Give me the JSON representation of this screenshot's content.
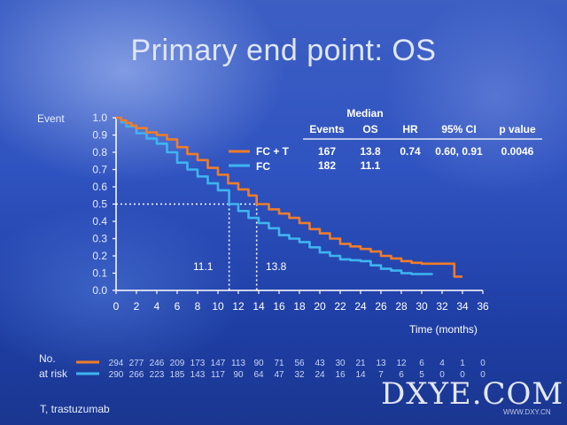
{
  "slide": {
    "title": "Primary end point: OS",
    "footnote": "T, trastuzumab",
    "watermark": "DXYE.COM",
    "watermark_sub": "WWW.DXY.CN"
  },
  "chart_data": {
    "type": "line",
    "ylabel": "Event",
    "xlabel": "Time (months)",
    "xlim": [
      0,
      36
    ],
    "ylim": [
      0,
      1.0
    ],
    "xticks": [
      "0",
      "2",
      "4",
      "6",
      "8",
      "10",
      "12",
      "14",
      "16",
      "18",
      "20",
      "22",
      "24",
      "26",
      "28",
      "30",
      "32",
      "34",
      "36"
    ],
    "yticks": [
      "0.0",
      "0.1",
      "0.2",
      "0.3",
      "0.4",
      "0.5",
      "0.6",
      "0.7",
      "0.8",
      "0.9",
      "1.0"
    ],
    "legend_position": "right",
    "series": [
      {
        "name": "FC + T",
        "color": "#f07c2a",
        "points": [
          [
            0,
            1.0
          ],
          [
            0.5,
            0.985
          ],
          [
            1,
            0.97
          ],
          [
            1.5,
            0.955
          ],
          [
            2,
            0.94
          ],
          [
            3,
            0.915
          ],
          [
            4,
            0.9
          ],
          [
            5,
            0.875
          ],
          [
            6,
            0.83
          ],
          [
            7,
            0.79
          ],
          [
            8,
            0.755
          ],
          [
            9,
            0.71
          ],
          [
            10,
            0.67
          ],
          [
            11,
            0.62
          ],
          [
            12,
            0.585
          ],
          [
            13,
            0.55
          ],
          [
            13.8,
            0.5
          ],
          [
            15,
            0.47
          ],
          [
            16,
            0.445
          ],
          [
            17,
            0.42
          ],
          [
            18,
            0.39
          ],
          [
            19,
            0.355
          ],
          [
            20,
            0.33
          ],
          [
            21,
            0.3
          ],
          [
            22,
            0.27
          ],
          [
            23,
            0.255
          ],
          [
            24,
            0.24
          ],
          [
            25,
            0.225
          ],
          [
            26,
            0.2
          ],
          [
            27,
            0.185
          ],
          [
            28,
            0.17
          ],
          [
            29,
            0.16
          ],
          [
            30,
            0.155
          ],
          [
            31,
            0.155
          ],
          [
            33,
            0.155
          ],
          [
            33.2,
            0.08
          ],
          [
            34,
            0.08
          ]
        ]
      },
      {
        "name": "FC",
        "color": "#3fb4f0",
        "points": [
          [
            0,
            1.0
          ],
          [
            0.5,
            0.975
          ],
          [
            1,
            0.95
          ],
          [
            2,
            0.91
          ],
          [
            3,
            0.88
          ],
          [
            4,
            0.85
          ],
          [
            5,
            0.8
          ],
          [
            6,
            0.74
          ],
          [
            7,
            0.7
          ],
          [
            8,
            0.66
          ],
          [
            9,
            0.62
          ],
          [
            10,
            0.58
          ],
          [
            11.1,
            0.5
          ],
          [
            12,
            0.46
          ],
          [
            13,
            0.42
          ],
          [
            14,
            0.39
          ],
          [
            15,
            0.36
          ],
          [
            16,
            0.32
          ],
          [
            17,
            0.3
          ],
          [
            18,
            0.28
          ],
          [
            19,
            0.25
          ],
          [
            20,
            0.22
          ],
          [
            21,
            0.2
          ],
          [
            22,
            0.18
          ],
          [
            23,
            0.175
          ],
          [
            24,
            0.17
          ],
          [
            25,
            0.145
          ],
          [
            26,
            0.125
          ],
          [
            27,
            0.115
          ],
          [
            28,
            0.1
          ],
          [
            29,
            0.095
          ],
          [
            31,
            0.09
          ]
        ]
      }
    ],
    "reference": {
      "y": 0.5,
      "median_fc": 11.1,
      "median_fct": 13.8,
      "label_fc": "11.1",
      "label_fct": "13.8"
    },
    "stats_table": {
      "header_top": "Median",
      "headers": [
        "Events",
        "OS",
        "HR",
        "95% CI",
        "p value"
      ],
      "rows": [
        {
          "label": "FC + T",
          "events": "167",
          "os": "13.8",
          "hr": "0.74",
          "ci": "0.60, 0.91",
          "p": "0.0046"
        },
        {
          "label": "FC",
          "events": "182",
          "os": "11.1",
          "hr": "",
          "ci": "",
          "p": ""
        }
      ]
    },
    "risk_table": {
      "label_line1": "No.",
      "label_line2": "at risk",
      "fct": [
        "294",
        "277",
        "246",
        "209",
        "173",
        "147",
        "113",
        "90",
        "71",
        "56",
        "43",
        "30",
        "21",
        "13",
        "12",
        "6",
        "4",
        "1",
        "0"
      ],
      "fc": [
        "290",
        "266",
        "223",
        "185",
        "143",
        "117",
        "90",
        "64",
        "47",
        "32",
        "24",
        "16",
        "14",
        "7",
        "6",
        "5",
        "0",
        "0",
        "0"
      ]
    }
  }
}
